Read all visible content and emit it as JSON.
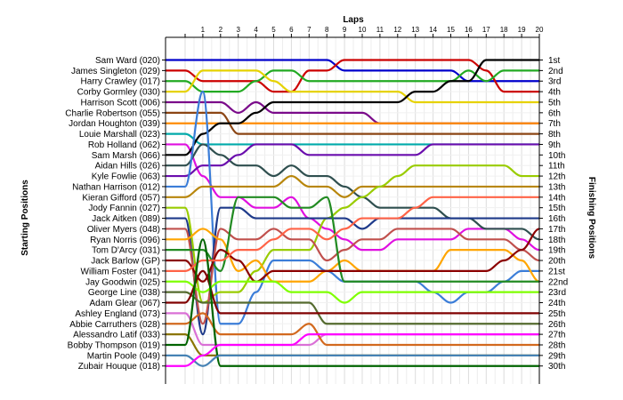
{
  "chart_data": {
    "type": "line",
    "title": "Laps",
    "ylabel_left": "Starting Positions",
    "ylabel_right": "Finishing Positions",
    "x_ticks": [
      "1",
      "2",
      "3",
      "4",
      "5",
      "6",
      "7",
      "8",
      "9",
      "10",
      "11",
      "12",
      "13",
      "14",
      "15",
      "16",
      "17",
      "18",
      "19",
      "20"
    ],
    "start_labels": [
      "Sam Ward (020)",
      "James Singleton (029)",
      "Harry Crawley (017)",
      "Corby Gormley (030)",
      "Harrison Scott (006)",
      "Charlie Robertson (055)",
      "Jordan Houghton (039)",
      "Louie Marshall (023)",
      "Rob Holland (062)",
      "Sam Marsh (066)",
      "Aidan Hills (026)",
      "Kyle Fowlie (063)",
      "Nathan Harrison (012)",
      "Kieran Gifford (057)",
      "Jody Fannin (027)",
      "Jack Aitken (089)",
      "Oliver Myers (048)",
      "Ryan Norris (096)",
      "Tom D'Arcy (031)",
      "Jack Barlow (GP)",
      "William Foster (041)",
      "Jay Goodwin (025)",
      "George Line (038)",
      "Adam Glear (067)",
      "Ashley England (073)",
      "Abbie Carruthers (028)",
      "Alessandro Latif (033)",
      "Bobby Thompson (019)",
      "Martin Poole (049)",
      "Zubair Houque (018)"
    ],
    "finish_labels": [
      "1st",
      "2nd",
      "3rd",
      "4th",
      "5th",
      "6th",
      "7th",
      "8th",
      "9th",
      "10th",
      "11th",
      "12th",
      "13th",
      "14th",
      "15th",
      "16th",
      "17th",
      "18th",
      "19th",
      "20th",
      "21st",
      "22nd",
      "23rd",
      "24th",
      "25th",
      "26th",
      "27th",
      "28th",
      "29th",
      "30th"
    ],
    "series": [
      {
        "color": "#0000cc",
        "values": [
          1,
          1,
          1,
          1,
          1,
          1,
          1,
          1,
          1,
          2,
          2,
          2,
          2,
          2,
          2,
          2,
          3,
          3,
          3,
          3,
          3
        ]
      },
      {
        "color": "#cc0000",
        "values": [
          2,
          3,
          3,
          3,
          3,
          4,
          4,
          2,
          2,
          1,
          1,
          1,
          1,
          1,
          1,
          1,
          1,
          2,
          4,
          4,
          4
        ]
      },
      {
        "color": "#22aa22",
        "values": [
          3,
          4,
          4,
          4,
          3,
          2,
          2,
          3,
          3,
          3,
          3,
          3,
          3,
          3,
          3,
          3,
          2,
          3,
          2,
          2,
          2
        ]
      },
      {
        "color": "#e6d200",
        "values": [
          4,
          2,
          2,
          2,
          2,
          3,
          4,
          4,
          4,
          4,
          4,
          4,
          4,
          5,
          5,
          5,
          5,
          5,
          5,
          5,
          5
        ]
      },
      {
        "color": "#7a0a8a",
        "values": [
          5,
          5,
          5,
          6,
          5,
          6,
          6,
          6,
          6,
          6,
          6,
          7,
          7,
          7,
          7,
          7,
          7,
          7,
          7,
          7,
          7
        ]
      },
      {
        "color": "#8b4513",
        "values": [
          6,
          6,
          6,
          8,
          8,
          8,
          8,
          8,
          8,
          8,
          8,
          8,
          8,
          8,
          8,
          8,
          8,
          8,
          8,
          8,
          8
        ]
      },
      {
        "color": "#ff8c00",
        "values": [
          7,
          7,
          7,
          7,
          7,
          7,
          7,
          7,
          7,
          7,
          7,
          7,
          7,
          7,
          7,
          7,
          7,
          7,
          7,
          7,
          7
        ]
      },
      {
        "color": "#00aaaa",
        "values": [
          8,
          9,
          9,
          9,
          9,
          9,
          9,
          9,
          9,
          9,
          9,
          9,
          9,
          9,
          9,
          9,
          9,
          9,
          9,
          9,
          9
        ]
      },
      {
        "color": "#e010e0",
        "values": [
          9,
          12,
          14,
          14,
          15,
          15,
          14,
          16,
          17,
          18,
          19,
          19,
          18,
          18,
          18,
          18,
          17,
          17,
          17,
          18,
          19
        ]
      },
      {
        "color": "#000000",
        "values": [
          10,
          8,
          7,
          7,
          6,
          5,
          5,
          5,
          5,
          5,
          5,
          5,
          5,
          4,
          4,
          3,
          3,
          1,
          1,
          1,
          1
        ]
      },
      {
        "color": "#2f4f4f",
        "values": [
          11,
          9,
          10,
          11,
          11,
          12,
          11,
          12,
          12,
          13,
          14,
          15,
          15,
          15,
          15,
          16,
          16,
          17,
          17,
          17,
          18
        ]
      },
      {
        "color": "#6a0dad",
        "values": [
          12,
          11,
          11,
          10,
          9,
          9,
          9,
          10,
          10,
          10,
          10,
          10,
          10,
          10,
          9,
          9,
          9,
          9,
          9,
          9,
          9
        ]
      },
      {
        "color": "#3b7dd8",
        "values": [
          13,
          4,
          26,
          26,
          23,
          20,
          20,
          20,
          21,
          22,
          22,
          22,
          22,
          22,
          23,
          24,
          23,
          23,
          22,
          21,
          21
        ]
      },
      {
        "color": "#b8860b",
        "values": [
          14,
          13,
          13,
          13,
          13,
          13,
          12,
          13,
          13,
          14,
          13,
          13,
          13,
          13,
          13,
          13,
          13,
          13,
          13,
          13,
          13
        ]
      },
      {
        "color": "#99cc00",
        "values": [
          15,
          24,
          23,
          23,
          21,
          19,
          19,
          19,
          16,
          15,
          14,
          13,
          12,
          11,
          11,
          11,
          11,
          11,
          11,
          12,
          12
        ]
      },
      {
        "color": "#1e3a8a",
        "values": [
          16,
          27,
          15,
          15,
          16,
          16,
          16,
          16,
          16,
          16,
          17,
          16,
          16,
          16,
          16,
          16,
          16,
          16,
          16,
          16,
          16
        ]
      },
      {
        "color": "#c0504d",
        "values": [
          17,
          26,
          17,
          18,
          18,
          17,
          18,
          18,
          20,
          19,
          18,
          18,
          17,
          17,
          17,
          17,
          18,
          18,
          18,
          19,
          20
        ]
      },
      {
        "color": "#ffa500",
        "values": [
          18,
          17,
          18,
          21,
          20,
          22,
          22,
          22,
          21,
          20,
          21,
          21,
          21,
          21,
          21,
          19,
          19,
          19,
          19,
          20,
          22
        ]
      },
      {
        "color": "#228b22",
        "values": [
          19,
          19,
          21,
          14,
          14,
          14,
          15,
          15,
          14,
          22,
          22,
          22,
          22,
          22,
          22,
          22,
          22,
          22,
          22,
          22,
          22
        ]
      },
      {
        "color": "#8b0000",
        "values": [
          20,
          22,
          19,
          20,
          22,
          21,
          21,
          21,
          21,
          21,
          21,
          21,
          21,
          21,
          21,
          21,
          21,
          21,
          20,
          19,
          17
        ]
      },
      {
        "color": "#ff6347",
        "values": [
          21,
          20,
          20,
          19,
          19,
          18,
          17,
          17,
          18,
          17,
          16,
          16,
          16,
          15,
          14,
          14,
          14,
          14,
          14,
          14,
          14
        ]
      },
      {
        "color": "#7fff00",
        "values": [
          22,
          23,
          22,
          22,
          22,
          22,
          23,
          23,
          23,
          24,
          23,
          23,
          23,
          23,
          23,
          23,
          23,
          23,
          23,
          23,
          23
        ]
      },
      {
        "color": "#556b2f",
        "values": [
          23,
          24,
          24,
          24,
          24,
          24,
          24,
          24,
          26,
          26,
          26,
          26,
          26,
          26,
          26,
          26,
          26,
          26,
          26,
          26,
          26
        ]
      },
      {
        "color": "#800000",
        "values": [
          24,
          21,
          25,
          25,
          25,
          25,
          25,
          25,
          25,
          25,
          25,
          25,
          25,
          25,
          25,
          25,
          25,
          25,
          25,
          25,
          25
        ]
      },
      {
        "color": "#da70d6",
        "values": [
          25,
          28,
          28,
          28,
          28,
          28,
          28,
          28,
          27,
          27,
          27,
          27,
          27,
          27,
          27,
          27,
          27,
          27,
          27,
          27,
          27
        ]
      },
      {
        "color": "#d2691e",
        "values": [
          26,
          25,
          27,
          27,
          27,
          27,
          27,
          26,
          28,
          28,
          28,
          28,
          28,
          28,
          28,
          28,
          28,
          28,
          28,
          28,
          28
        ]
      },
      {
        "color": "#8b7500",
        "values": [
          27,
          29,
          29,
          29,
          29,
          29,
          29,
          29,
          29,
          29,
          29,
          29,
          29,
          29,
          29,
          29,
          29,
          29,
          29,
          29,
          29
        ]
      },
      {
        "color": "#006400",
        "values": [
          28,
          18,
          30,
          30,
          30,
          30,
          30,
          30,
          30,
          30,
          30,
          30,
          30,
          30,
          30,
          30,
          30,
          30,
          30,
          30,
          30
        ]
      },
      {
        "color": "#4682b4",
        "values": [
          29,
          30,
          29,
          29,
          29,
          29,
          29,
          29,
          29,
          29,
          29,
          29,
          29,
          29,
          29,
          29,
          29,
          29,
          29,
          29,
          29
        ]
      },
      {
        "color": "#ff00ff",
        "values": [
          30,
          29,
          28,
          28,
          28,
          28,
          28,
          27,
          27,
          27,
          27,
          27,
          27,
          27,
          27,
          27,
          27,
          27,
          27,
          27,
          27
        ]
      }
    ]
  }
}
